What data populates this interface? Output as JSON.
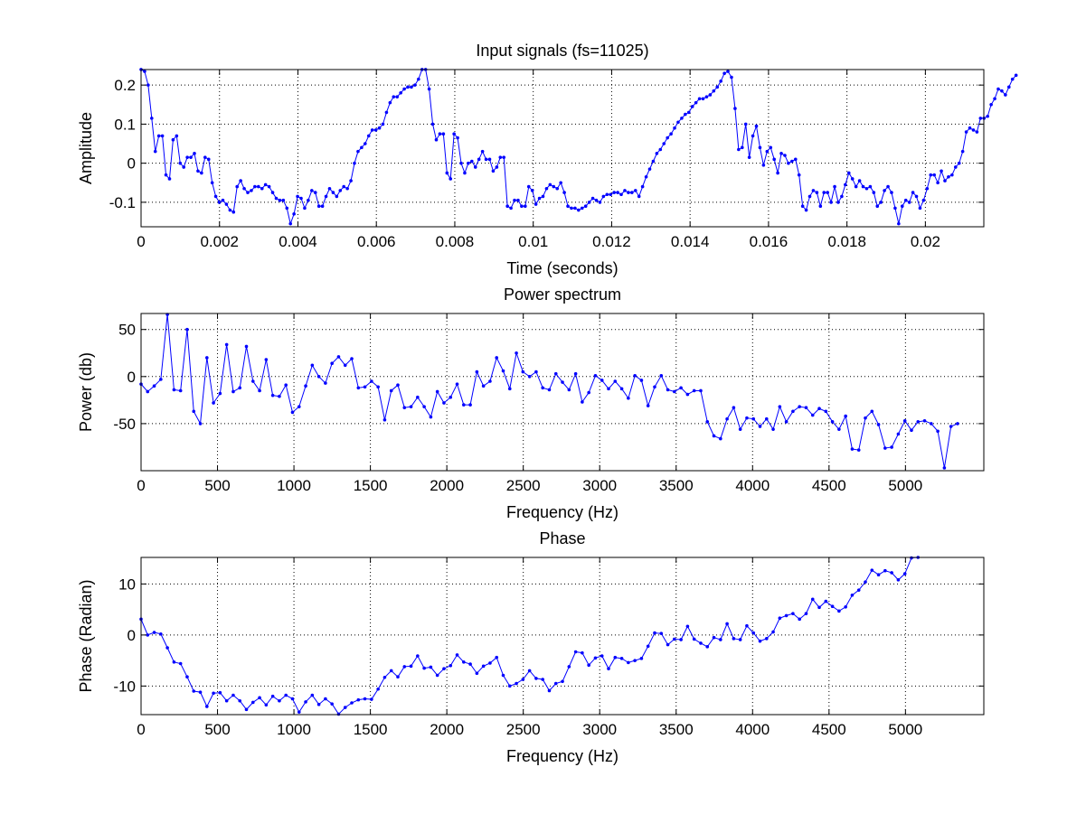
{
  "chart_data": [
    {
      "type": "line",
      "title": "Input signals (fs=11025)",
      "xlabel": "Time (seconds)",
      "ylabel": "Amplitude",
      "xlim": [
        0,
        0.02149
      ],
      "ylim": [
        -0.1627,
        0.2397
      ],
      "xticks": [
        0,
        0.002,
        0.004,
        0.006,
        0.008,
        0.01,
        0.012,
        0.014,
        0.016,
        0.018,
        0.02
      ],
      "xtick_labels": [
        "0",
        "0.002",
        "0.004",
        "0.006",
        "0.008",
        "0.01",
        "0.012",
        "0.014",
        "0.016",
        "0.018",
        "0.02"
      ],
      "yticks": [
        -0.1,
        0,
        0.1,
        0.2
      ],
      "ytick_labels": [
        "-0.1",
        "0",
        "0.1",
        "0.2"
      ],
      "grid": true,
      "marker": "dot",
      "color": "#0000ff",
      "x_step": 9.07e-05,
      "series": [
        {
          "values": [
            0.24,
            0.235,
            0.2,
            0.115,
            0.03,
            0.07,
            0.07,
            -0.03,
            -0.04,
            0.06,
            0.07,
            0.0,
            -0.01,
            0.015,
            0.015,
            0.025,
            -0.02,
            -0.025,
            0.015,
            0.01,
            -0.05,
            -0.085,
            -0.1,
            -0.095,
            -0.105,
            -0.12,
            -0.125,
            -0.06,
            -0.045,
            -0.065,
            -0.075,
            -0.07,
            -0.06,
            -0.06,
            -0.065,
            -0.055,
            -0.06,
            -0.075,
            -0.09,
            -0.095,
            -0.095,
            -0.115,
            -0.155,
            -0.13,
            -0.085,
            -0.09,
            -0.115,
            -0.095,
            -0.07,
            -0.075,
            -0.11,
            -0.11,
            -0.085,
            -0.065,
            -0.075,
            -0.085,
            -0.07,
            -0.06,
            -0.065,
            -0.045,
            0.0,
            0.03,
            0.04,
            0.05,
            0.07,
            0.085,
            0.085,
            0.09,
            0.1,
            0.13,
            0.155,
            0.17,
            0.17,
            0.18,
            0.19,
            0.195,
            0.195,
            0.2,
            0.215,
            0.24,
            0.24,
            0.19,
            0.1,
            0.06,
            0.075,
            0.075,
            -0.025,
            -0.04,
            0.075,
            0.065,
            0.0,
            -0.025,
            0.0,
            0.005,
            -0.01,
            0.01,
            0.03,
            0.01,
            0.01,
            -0.02,
            -0.01,
            0.015,
            0.015,
            -0.11,
            -0.115,
            -0.095,
            -0.095,
            -0.11,
            -0.11,
            -0.06,
            -0.07,
            -0.105,
            -0.09,
            -0.085,
            -0.065,
            -0.055,
            -0.06,
            -0.065,
            -0.05,
            -0.075,
            -0.11,
            -0.115,
            -0.115,
            -0.12,
            -0.115,
            -0.11,
            -0.1,
            -0.09,
            -0.095,
            -0.1,
            -0.085,
            -0.08,
            -0.08,
            -0.075,
            -0.075,
            -0.08,
            -0.07,
            -0.075,
            -0.075,
            -0.07,
            -0.085,
            -0.06,
            -0.035,
            -0.015,
            0.005,
            0.025,
            0.035,
            0.05,
            0.065,
            0.075,
            0.09,
            0.105,
            0.115,
            0.125,
            0.13,
            0.145,
            0.155,
            0.165,
            0.165,
            0.17,
            0.175,
            0.185,
            0.195,
            0.21,
            0.23,
            0.235,
            0.22,
            0.14,
            0.035,
            0.04,
            0.1,
            0.015,
            0.07,
            0.095,
            0.04,
            -0.005,
            0.03,
            0.04,
            0.01,
            -0.025,
            0.025,
            0.02,
            0.0,
            0.005,
            0.01,
            -0.03,
            -0.11,
            -0.12,
            -0.085,
            -0.07,
            -0.075,
            -0.11,
            -0.075,
            -0.075,
            -0.1,
            -0.06,
            -0.1,
            -0.085,
            -0.055,
            -0.025,
            -0.04,
            -0.06,
            -0.045,
            -0.06,
            -0.065,
            -0.06,
            -0.075,
            -0.11,
            -0.1,
            -0.07,
            -0.06,
            -0.075,
            -0.115,
            -0.155,
            -0.11,
            -0.095,
            -0.1,
            -0.075,
            -0.085,
            -0.115,
            -0.095,
            -0.065,
            -0.03,
            -0.03,
            -0.05,
            -0.02,
            -0.045,
            -0.035,
            -0.03,
            -0.01,
            0.0,
            0.03,
            0.08,
            0.09,
            0.085,
            0.08,
            0.115,
            0.115,
            0.12,
            0.15,
            0.165,
            0.19,
            0.185,
            0.175,
            0.195,
            0.215,
            0.225
          ]
        }
      ]
    },
    {
      "type": "line",
      "title": "Power spectrum",
      "xlabel": "Frequency (Hz)",
      "ylabel": "Power (db)",
      "xlim": [
        0,
        5512.5
      ],
      "ylim": [
        -100,
        67
      ],
      "xticks": [
        0,
        500,
        1000,
        1500,
        2000,
        2500,
        3000,
        3500,
        4000,
        4500,
        5000
      ],
      "xtick_labels": [
        "0",
        "500",
        "1000",
        "1500",
        "2000",
        "2500",
        "3000",
        "3500",
        "4000",
        "4500",
        "5000"
      ],
      "yticks": [
        -50,
        0,
        50
      ],
      "ytick_labels": [
        "-50",
        "0",
        "50"
      ],
      "grid": true,
      "marker": "dot",
      "color": "#0000ff",
      "x_step": 43.07,
      "series": [
        {
          "values": [
            -8,
            -16,
            -10,
            -3,
            66,
            -14,
            -15,
            50,
            -37,
            -50,
            20,
            -28,
            -18,
            34,
            -16,
            -12,
            32,
            -5,
            -15,
            18,
            -20,
            -21,
            -9,
            -38,
            -32,
            -10,
            12,
            0,
            -7,
            14,
            21,
            12,
            19,
            -12,
            -11,
            -5,
            -11,
            -46,
            -15,
            -9,
            -33,
            -32,
            -22,
            -32,
            -43,
            -16,
            -28,
            -22,
            -8,
            -30,
            -30,
            5,
            -10,
            -5,
            20,
            6,
            -13,
            25,
            5,
            0,
            5,
            -12,
            -14,
            3,
            -6,
            -14,
            3,
            -27,
            -17,
            1,
            -4,
            -13,
            -5,
            -13,
            -23,
            1,
            -4,
            -31,
            -11,
            1,
            -14,
            -16,
            -12,
            -19,
            -15,
            -15,
            -48,
            -63,
            -66,
            -45,
            -33,
            -56,
            -44,
            -45,
            -53,
            -45,
            -56,
            -32,
            -48,
            -37,
            -32,
            -33,
            -41,
            -34,
            -37,
            -48,
            -56,
            -42,
            -77,
            -78,
            -44,
            -37,
            -51,
            -76,
            -75,
            -61,
            -47,
            -57,
            -48,
            -47,
            -50,
            -58,
            -97,
            -53,
            -50
          ]
        }
      ]
    },
    {
      "type": "line",
      "title": "Phase",
      "xlabel": "Frequency (Hz)",
      "ylabel": "Phase (Radian)",
      "xlim": [
        0,
        5512.5
      ],
      "ylim": [
        -15.6,
        15.2
      ],
      "xticks": [
        0,
        500,
        1000,
        1500,
        2000,
        2500,
        3000,
        3500,
        4000,
        4500,
        5000
      ],
      "xtick_labels": [
        "0",
        "500",
        "1000",
        "1500",
        "2000",
        "2500",
        "3000",
        "3500",
        "4000",
        "4500",
        "5000"
      ],
      "yticks": [
        -10,
        0,
        10
      ],
      "ytick_labels": [
        "-10",
        "0",
        "10"
      ],
      "grid": true,
      "marker": "dot",
      "color": "#0000ff",
      "x_step": 43.07,
      "series": [
        {
          "values": [
            3.1,
            0.0,
            0.5,
            0.2,
            -2.5,
            -5.3,
            -5.6,
            -8.2,
            -11.0,
            -11.2,
            -14.0,
            -11.4,
            -11.3,
            -12.9,
            -11.8,
            -12.9,
            -14.6,
            -13.2,
            -12.3,
            -13.7,
            -12.0,
            -12.9,
            -11.8,
            -12.5,
            -15.1,
            -13.1,
            -11.8,
            -13.6,
            -12.5,
            -13.5,
            -15.5,
            -14.2,
            -13.3,
            -12.7,
            -12.5,
            -12.6,
            -10.6,
            -8.3,
            -7.0,
            -8.2,
            -6.2,
            -6.1,
            -4.1,
            -6.5,
            -6.3,
            -7.9,
            -6.6,
            -6.0,
            -3.9,
            -5.3,
            -5.7,
            -7.5,
            -6.1,
            -5.5,
            -4.4,
            -7.9,
            -10.0,
            -9.5,
            -8.7,
            -7.0,
            -8.5,
            -8.7,
            -10.9,
            -9.5,
            -9.1,
            -6.2,
            -3.3,
            -3.5,
            -5.9,
            -4.5,
            -4.1,
            -6.6,
            -4.4,
            -4.6,
            -5.4,
            -5.0,
            -4.6,
            -2.2,
            0.4,
            0.3,
            -1.9,
            -0.8,
            -0.9,
            1.7,
            -0.8,
            -1.6,
            -2.3,
            -0.5,
            -0.9,
            2.2,
            -0.7,
            -0.9,
            1.8,
            0.4,
            -1.2,
            -0.7,
            0.6,
            3.3,
            3.8,
            4.2,
            3.1,
            4.2,
            7.0,
            5.4,
            6.6,
            5.6,
            4.7,
            5.5,
            7.8,
            8.8,
            10.4,
            12.7,
            11.8,
            12.6,
            12.2,
            10.8,
            12.0,
            15.1,
            15.2
          ]
        }
      ]
    }
  ]
}
